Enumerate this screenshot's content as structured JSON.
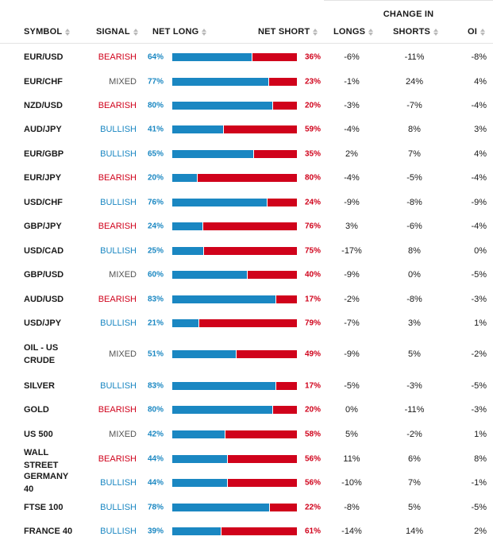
{
  "header": {
    "change_in": "CHANGE IN",
    "symbol": "SYMBOL",
    "signal": "SIGNAL",
    "net_long": "NET LONG",
    "net_short": "NET SHORT",
    "longs": "LONGS",
    "shorts": "SHORTS",
    "oi": "OI",
    "sort_icon": "sort-arrows-icon"
  },
  "colors": {
    "long": "#1a87c2",
    "short": "#d0021b",
    "mixed": "#555555"
  },
  "rows": [
    {
      "symbol": "EUR/USD",
      "signal": "BEARISH",
      "net_long": "64%",
      "net_long_value": 64,
      "net_short": "36%",
      "longs": "-6%",
      "shorts": "-11%",
      "oi": "-8%"
    },
    {
      "symbol": "EUR/CHF",
      "signal": "MIXED",
      "net_long": "77%",
      "net_long_value": 77,
      "net_short": "23%",
      "longs": "-1%",
      "shorts": "24%",
      "oi": "4%"
    },
    {
      "symbol": "NZD/USD",
      "signal": "BEARISH",
      "net_long": "80%",
      "net_long_value": 80,
      "net_short": "20%",
      "longs": "-3%",
      "shorts": "-7%",
      "oi": "-4%"
    },
    {
      "symbol": "AUD/JPY",
      "signal": "BULLISH",
      "net_long": "41%",
      "net_long_value": 41,
      "net_short": "59%",
      "longs": "-4%",
      "shorts": "8%",
      "oi": "3%"
    },
    {
      "symbol": "EUR/GBP",
      "signal": "BULLISH",
      "net_long": "65%",
      "net_long_value": 65,
      "net_short": "35%",
      "longs": "2%",
      "shorts": "7%",
      "oi": "4%"
    },
    {
      "symbol": "EUR/JPY",
      "signal": "BEARISH",
      "net_long": "20%",
      "net_long_value": 20,
      "net_short": "80%",
      "longs": "-4%",
      "shorts": "-5%",
      "oi": "-4%"
    },
    {
      "symbol": "USD/CHF",
      "signal": "BULLISH",
      "net_long": "76%",
      "net_long_value": 76,
      "net_short": "24%",
      "longs": "-9%",
      "shorts": "-8%",
      "oi": "-9%"
    },
    {
      "symbol": "GBP/JPY",
      "signal": "BEARISH",
      "net_long": "24%",
      "net_long_value": 24,
      "net_short": "76%",
      "longs": "3%",
      "shorts": "-6%",
      "oi": "-4%"
    },
    {
      "symbol": "USD/CAD",
      "signal": "BULLISH",
      "net_long": "25%",
      "net_long_value": 25,
      "net_short": "75%",
      "longs": "-17%",
      "shorts": "8%",
      "oi": "0%"
    },
    {
      "symbol": "GBP/USD",
      "signal": "MIXED",
      "net_long": "60%",
      "net_long_value": 60,
      "net_short": "40%",
      "longs": "-9%",
      "shorts": "0%",
      "oi": "-5%"
    },
    {
      "symbol": "AUD/USD",
      "signal": "BEARISH",
      "net_long": "83%",
      "net_long_value": 83,
      "net_short": "17%",
      "longs": "-2%",
      "shorts": "-8%",
      "oi": "-3%"
    },
    {
      "symbol": "USD/JPY",
      "signal": "BULLISH",
      "net_long": "21%",
      "net_long_value": 21,
      "net_short": "79%",
      "longs": "-7%",
      "shorts": "3%",
      "oi": "1%"
    },
    {
      "symbol": "OIL - US CRUDE",
      "signal": "MIXED",
      "net_long": "51%",
      "net_long_value": 51,
      "net_short": "49%",
      "longs": "-9%",
      "shorts": "5%",
      "oi": "-2%"
    },
    {
      "symbol": "SILVER",
      "signal": "BULLISH",
      "net_long": "83%",
      "net_long_value": 83,
      "net_short": "17%",
      "longs": "-5%",
      "shorts": "-3%",
      "oi": "-5%"
    },
    {
      "symbol": "GOLD",
      "signal": "BEARISH",
      "net_long": "80%",
      "net_long_value": 80,
      "net_short": "20%",
      "longs": "0%",
      "shorts": "-11%",
      "oi": "-3%"
    },
    {
      "symbol": "US 500",
      "signal": "MIXED",
      "net_long": "42%",
      "net_long_value": 42,
      "net_short": "58%",
      "longs": "5%",
      "shorts": "-2%",
      "oi": "1%"
    },
    {
      "symbol": "WALL STREET",
      "signal": "BEARISH",
      "net_long": "44%",
      "net_long_value": 44,
      "net_short": "56%",
      "longs": "11%",
      "shorts": "6%",
      "oi": "8%"
    },
    {
      "symbol": "GERMANY 40",
      "signal": "BULLISH",
      "net_long": "44%",
      "net_long_value": 44,
      "net_short": "56%",
      "longs": "-10%",
      "shorts": "7%",
      "oi": "-1%"
    },
    {
      "symbol": "FTSE 100",
      "signal": "BULLISH",
      "net_long": "78%",
      "net_long_value": 78,
      "net_short": "22%",
      "longs": "-8%",
      "shorts": "5%",
      "oi": "-5%"
    },
    {
      "symbol": "FRANCE 40",
      "signal": "BULLISH",
      "net_long": "39%",
      "net_long_value": 39,
      "net_short": "61%",
      "longs": "-14%",
      "shorts": "14%",
      "oi": "2%"
    }
  ]
}
